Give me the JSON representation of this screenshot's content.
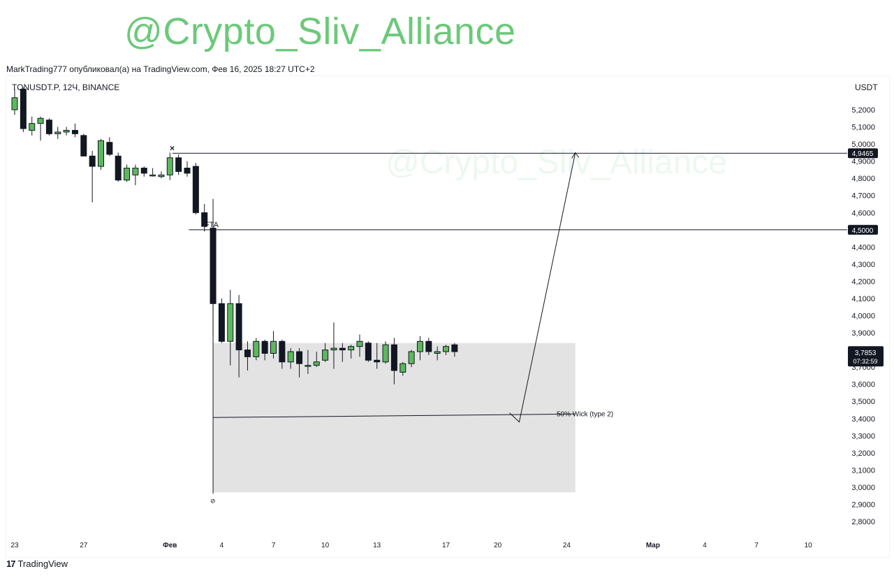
{
  "watermark": "@Crypto_Sliv_Alliance",
  "published_line": "MarkTrading777 опубликовал(а) на TradingView.com, Фев 16, 2025 18:27 UTC+2",
  "symbol_line": "TONUSDT.P, 12Ч, BINANCE",
  "currency": "USDT",
  "footer": {
    "logo_mark": "17",
    "logo_text": "TradingView"
  },
  "chart_data": {
    "type": "candlestick",
    "title": "",
    "y_range": [
      2.72,
      5.27
    ],
    "y_ticks": [
      "5,2000",
      "5,1000",
      "5,0000",
      "4,9000",
      "4,8000",
      "4,7000",
      "4,6000",
      "4,5000",
      "4,4000",
      "4,3000",
      "4,2000",
      "4,1000",
      "4,0000",
      "3,9000",
      "3,8000",
      "3,7000",
      "3,6000",
      "3,5000",
      "3,4000",
      "3,3000",
      "3,2000",
      "3,1000",
      "3,0000",
      "2,9000",
      "2,8000"
    ],
    "x_labels": [
      {
        "label": "23",
        "bar": 0,
        "bold": false
      },
      {
        "label": "27",
        "bar": 8,
        "bold": false
      },
      {
        "label": "Фев",
        "bar": 18,
        "bold": true
      },
      {
        "label": "4",
        "bar": 24,
        "bold": false
      },
      {
        "label": "7",
        "bar": 30,
        "bold": false
      },
      {
        "label": "10",
        "bar": 36,
        "bold": false
      },
      {
        "label": "13",
        "bar": 42,
        "bold": false
      },
      {
        "label": "17",
        "bar": 50,
        "bold": false
      },
      {
        "label": "20",
        "bar": 56,
        "bold": false
      },
      {
        "label": "24",
        "bar": 64,
        "bold": false
      },
      {
        "label": "Мар",
        "bar": 74,
        "bold": true
      },
      {
        "label": "4",
        "bar": 80,
        "bold": false
      },
      {
        "label": "7",
        "bar": 86,
        "bold": false
      },
      {
        "label": "10",
        "bar": 92,
        "bold": false
      }
    ],
    "candles": [
      [
        5.2,
        5.32,
        5.17,
        5.27
      ],
      [
        5.32,
        5.33,
        5.07,
        5.09
      ],
      [
        5.08,
        5.16,
        5.05,
        5.12
      ],
      [
        5.12,
        5.16,
        5.02,
        5.15
      ],
      [
        5.14,
        5.15,
        5.05,
        5.06
      ],
      [
        5.06,
        5.1,
        5.03,
        5.07
      ],
      [
        5.07,
        5.1,
        5.05,
        5.08
      ],
      [
        5.08,
        5.12,
        5.04,
        5.06
      ],
      [
        5.05,
        5.06,
        4.93,
        4.93
      ],
      [
        4.93,
        4.96,
        4.66,
        4.87
      ],
      [
        4.87,
        5.03,
        4.85,
        5.02
      ],
      [
        5.01,
        5.04,
        4.93,
        4.94
      ],
      [
        4.93,
        4.95,
        4.78,
        4.79
      ],
      [
        4.79,
        4.88,
        4.78,
        4.86
      ],
      [
        4.82,
        4.88,
        4.76,
        4.86
      ],
      [
        4.86,
        4.87,
        4.81,
        4.83
      ],
      [
        4.82,
        4.86,
        4.81,
        4.82
      ],
      [
        4.81,
        4.84,
        4.8,
        4.82
      ],
      [
        4.82,
        4.95,
        4.79,
        4.92
      ],
      [
        4.92,
        4.94,
        4.82,
        4.84
      ],
      [
        4.86,
        4.9,
        4.81,
        4.83
      ],
      [
        4.87,
        4.89,
        4.59,
        4.6
      ],
      [
        4.6,
        4.65,
        4.49,
        4.52
      ],
      [
        4.51,
        4.68,
        3.88,
        4.07
      ],
      [
        4.07,
        4.1,
        3.84,
        3.85
      ],
      [
        3.85,
        4.15,
        3.71,
        4.07
      ],
      [
        4.07,
        4.12,
        3.64,
        3.8
      ],
      [
        3.8,
        3.85,
        3.68,
        3.76
      ],
      [
        3.76,
        3.87,
        3.74,
        3.85
      ],
      [
        3.85,
        3.86,
        3.74,
        3.78
      ],
      [
        3.78,
        3.91,
        3.75,
        3.85
      ],
      [
        3.85,
        3.86,
        3.69,
        3.73
      ],
      [
        3.73,
        3.81,
        3.69,
        3.79
      ],
      [
        3.79,
        3.81,
        3.64,
        3.72
      ],
      [
        3.71,
        3.8,
        3.66,
        3.71
      ],
      [
        3.71,
        3.79,
        3.7,
        3.73
      ],
      [
        3.74,
        3.84,
        3.73,
        3.8
      ],
      [
        3.8,
        3.96,
        3.69,
        3.81
      ],
      [
        3.81,
        3.84,
        3.73,
        3.8
      ],
      [
        3.8,
        3.83,
        3.75,
        3.82
      ],
      [
        3.82,
        3.89,
        3.76,
        3.85
      ],
      [
        3.84,
        3.85,
        3.73,
        3.74
      ],
      [
        3.74,
        3.84,
        3.69,
        3.73
      ],
      [
        3.73,
        3.85,
        3.72,
        3.83
      ],
      [
        3.83,
        3.87,
        3.6,
        3.68
      ],
      [
        3.67,
        3.73,
        3.65,
        3.72
      ],
      [
        3.72,
        3.8,
        3.7,
        3.79
      ],
      [
        3.79,
        3.88,
        3.74,
        3.85
      ],
      [
        3.85,
        3.87,
        3.77,
        3.79
      ],
      [
        3.78,
        3.82,
        3.74,
        3.79
      ],
      [
        3.79,
        3.83,
        3.77,
        3.82
      ],
      [
        3.83,
        3.84,
        3.76,
        3.79
      ]
    ],
    "levels": [
      {
        "value": 4.9465,
        "label": "4,9465"
      },
      {
        "value": 4.5,
        "label": "4,5000"
      }
    ],
    "annotations": {
      "fta": "FTA",
      "wick": "50% Wick (type 2)",
      "x_marker": "×"
    },
    "current_price": {
      "label": "3,7853",
      "timer": "07:32:59",
      "value": 3.7853
    },
    "zone": {
      "top": 3.84,
      "bottom": 2.97,
      "start_bar": 23,
      "end_bar": 65
    },
    "wick_line": {
      "value": 3.41,
      "start_bar": 23,
      "end_bar": 65
    },
    "projection": {
      "from_bar": 58.5,
      "from_value": 3.38,
      "to_bar": 65,
      "to_value": 4.95
    }
  }
}
